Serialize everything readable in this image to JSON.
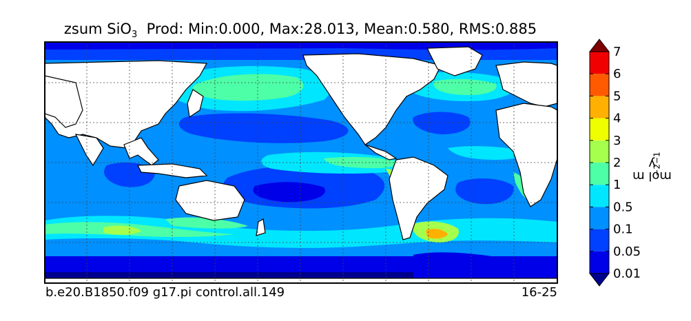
{
  "title_prefix": "zsum SiO",
  "title_sub": "3",
  "title_stats": "Prod: Min:0.000, Max:28.013, Mean:0.580, RMS:0.885",
  "footer_left": "b.e20.B1850.f09 g17.pi control.all.149",
  "footer_right": "16-25",
  "colorbar": {
    "unit_base": "mol m",
    "unit_exp1": "−2",
    "unit_mid": " y",
    "unit_exp2": "−1",
    "levels": [
      "0.01",
      "0.05",
      "0.1",
      "0.5",
      "1",
      "2",
      "3",
      "4",
      "5",
      "6",
      "7"
    ],
    "colors": [
      "#00008f",
      "#0000e8",
      "#0040ff",
      "#0090ff",
      "#00e6ff",
      "#4dffa6",
      "#a6ff4d",
      "#f0ff00",
      "#ffb000",
      "#ff5a00",
      "#f00000",
      "#800000"
    ]
  },
  "map": {
    "projection": "equirectangular",
    "grid": true,
    "land_color": "#ffffff",
    "ocean_base_color": "#0090ff"
  }
}
